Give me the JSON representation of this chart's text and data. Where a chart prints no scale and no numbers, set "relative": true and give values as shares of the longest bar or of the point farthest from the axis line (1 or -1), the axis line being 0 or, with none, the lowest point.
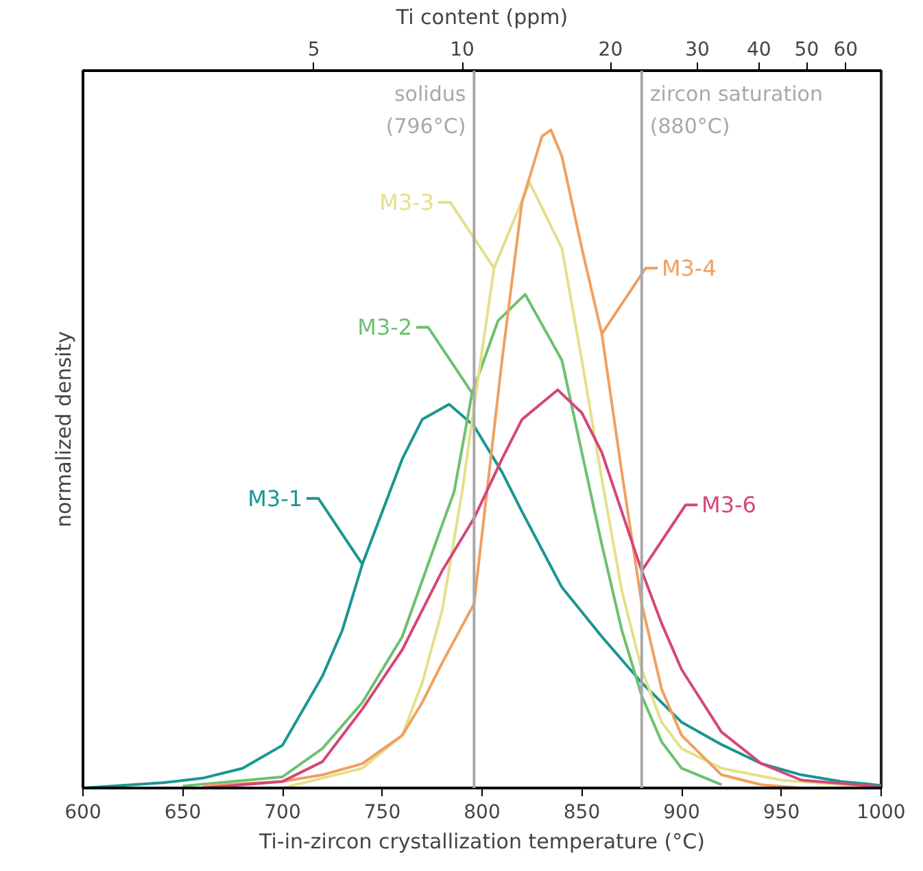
{
  "chart_data": {
    "type": "line",
    "relative": true,
    "xlabel": "Ti-in-zircon crystallization temperature (°C)",
    "ylabel": "normalized density",
    "x2label": "Ti content (ppm)",
    "xlim": [
      600,
      1000
    ],
    "xticks": [
      600,
      650,
      700,
      750,
      800,
      850,
      900,
      950,
      1000
    ],
    "x2lim": [
      1.7,
      70.8
    ],
    "log": "x2",
    "x2ticks": [
      5,
      10,
      20,
      30,
      40,
      50,
      60
    ],
    "grid": false,
    "ref_lines": [
      {
        "axis": "x",
        "value": 796,
        "label": "solidus\n(796°C)",
        "color": "#a8a8a8"
      },
      {
        "axis": "x",
        "value": 880,
        "label": "zircon saturation\n(880°C)",
        "color": "#a8a8a8"
      }
    ],
    "series": [
      {
        "name": "M3-1",
        "color": "#1a9690",
        "x": [
          600,
          640,
          660,
          680,
          700,
          720,
          730,
          740,
          750,
          760,
          770,
          783.5,
          790,
          796,
          810,
          820,
          840,
          860,
          880,
          900,
          920,
          940,
          960,
          980,
          1000
        ],
        "values": [
          0,
          0.008,
          0.015,
          0.03,
          0.065,
          0.17,
          0.24,
          0.34,
          0.42,
          0.5,
          0.56,
          0.583,
          0.566,
          0.55,
          0.48,
          0.42,
          0.305,
          0.23,
          0.16,
          0.1,
          0.066,
          0.037,
          0.02,
          0.01,
          0.004
        ]
      },
      {
        "name": "M3-2",
        "color": "#6cc070",
        "x": [
          650,
          700,
          720,
          740,
          760,
          780,
          786,
          795,
          808,
          821.6,
          840,
          850,
          860,
          870,
          880,
          890,
          900,
          920
        ],
        "values": [
          0.003,
          0.017,
          0.06,
          0.13,
          0.23,
          0.4,
          0.45,
          0.6,
          0.71,
          0.75,
          0.65,
          0.51,
          0.37,
          0.24,
          0.14,
          0.07,
          0.03,
          0.005
        ]
      },
      {
        "name": "M3-3",
        "color": "#e3e08a",
        "x": [
          700,
          740,
          760,
          770,
          780,
          790,
          796,
          806,
          823.8,
          840,
          850,
          860,
          870,
          880,
          890,
          900,
          920,
          950,
          1000
        ],
        "values": [
          0,
          0.03,
          0.08,
          0.16,
          0.27,
          0.45,
          0.58,
          0.79,
          0.92,
          0.82,
          0.65,
          0.47,
          0.3,
          0.18,
          0.1,
          0.06,
          0.03,
          0.012,
          0
        ]
      },
      {
        "name": "M3-4",
        "color": "#f0a060",
        "x": [
          660,
          700,
          720,
          740,
          760,
          770,
          780,
          796,
          810,
          820,
          830,
          834.5,
          840,
          850,
          860,
          870,
          880,
          890,
          900,
          920,
          940,
          960
        ],
        "values": [
          0.003,
          0.01,
          0.02,
          0.037,
          0.08,
          0.13,
          0.19,
          0.28,
          0.65,
          0.89,
          0.99,
          1.0,
          0.96,
          0.82,
          0.69,
          0.48,
          0.28,
          0.15,
          0.08,
          0.02,
          0.005,
          0
        ]
      },
      {
        "name": "M3-6",
        "color": "#d6457a",
        "x": [
          660,
          700,
          720,
          740,
          760,
          780,
          796,
          810,
          820,
          837.9,
          850,
          860,
          870,
          880,
          890,
          900,
          920,
          940,
          960,
          1000
        ],
        "values": [
          0,
          0.01,
          0.04,
          0.12,
          0.21,
          0.33,
          0.41,
          0.5,
          0.56,
          0.605,
          0.57,
          0.51,
          0.42,
          0.33,
          0.25,
          0.18,
          0.085,
          0.037,
          0.012,
          0.002
        ]
      }
    ]
  }
}
